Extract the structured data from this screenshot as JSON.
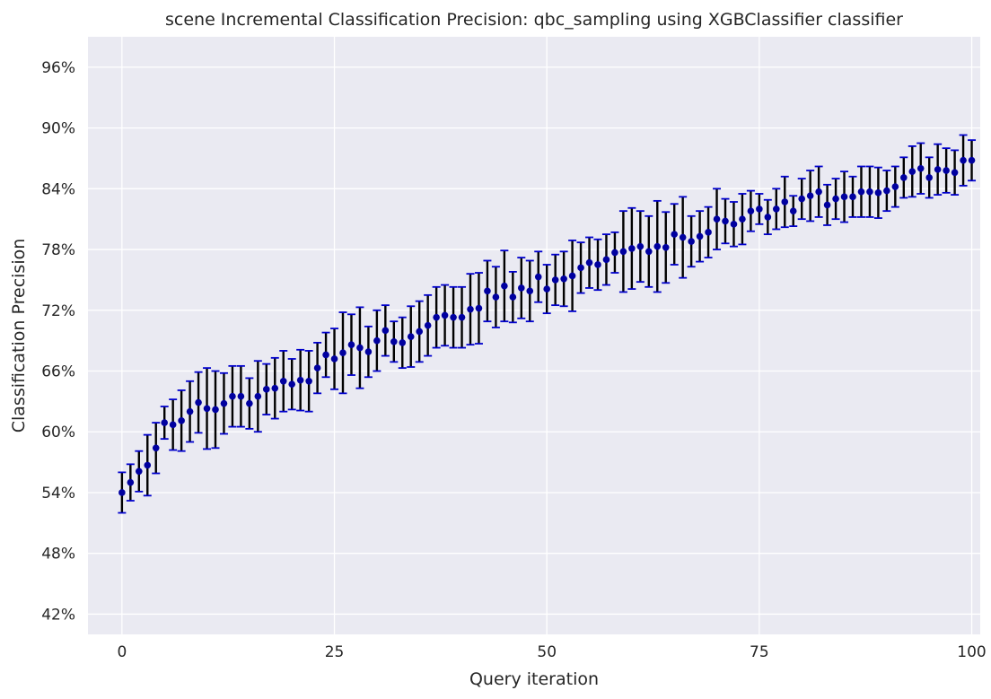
{
  "chart_data": {
    "type": "scatter",
    "title": "scene Incremental Classification Precision: qbc_sampling using XGBClassifier classifier",
    "xlabel": "Query iteration",
    "ylabel": "Classification Precision",
    "xlim": [
      -4,
      101
    ],
    "ylim": [
      0.4,
      0.99
    ],
    "xticks": [
      0,
      25,
      50,
      75,
      100
    ],
    "xtick_labels": [
      "0",
      "25",
      "50",
      "75",
      "100"
    ],
    "yticks": [
      0.42,
      0.48,
      0.54,
      0.6,
      0.66,
      0.72,
      0.78,
      0.84,
      0.9,
      0.96
    ],
    "ytick_labels": [
      "42%",
      "48%",
      "54%",
      "60%",
      "66%",
      "72%",
      "78%",
      "84%",
      "90%",
      "96%"
    ],
    "grid": true,
    "colors": {
      "background": "#EAEAF2",
      "grid": "#FFFFFF",
      "marker": "#0000A0",
      "errorbar": "#000000",
      "cap": "#0000CD",
      "text": "#262626"
    },
    "x": [
      0,
      1,
      2,
      3,
      4,
      5,
      6,
      7,
      8,
      9,
      10,
      11,
      12,
      13,
      14,
      15,
      16,
      17,
      18,
      19,
      20,
      21,
      22,
      23,
      24,
      25,
      26,
      27,
      28,
      29,
      30,
      31,
      32,
      33,
      34,
      35,
      36,
      37,
      38,
      39,
      40,
      41,
      42,
      43,
      44,
      45,
      46,
      47,
      48,
      49,
      50,
      51,
      52,
      53,
      54,
      55,
      56,
      57,
      58,
      59,
      60,
      61,
      62,
      63,
      64,
      65,
      66,
      67,
      68,
      69,
      70,
      71,
      72,
      73,
      74,
      75,
      76,
      77,
      78,
      79,
      80,
      81,
      82,
      83,
      84,
      85,
      86,
      87,
      88,
      89,
      90,
      91,
      92,
      93,
      94,
      95,
      96,
      97,
      98,
      99,
      100
    ],
    "y": [
      0.54,
      0.55,
      0.561,
      0.567,
      0.584,
      0.609,
      0.607,
      0.611,
      0.62,
      0.629,
      0.623,
      0.622,
      0.628,
      0.635,
      0.635,
      0.628,
      0.635,
      0.642,
      0.643,
      0.65,
      0.647,
      0.651,
      0.65,
      0.663,
      0.676,
      0.672,
      0.678,
      0.686,
      0.683,
      0.679,
      0.69,
      0.7,
      0.689,
      0.688,
      0.694,
      0.699,
      0.705,
      0.713,
      0.715,
      0.713,
      0.713,
      0.721,
      0.722,
      0.739,
      0.733,
      0.744,
      0.733,
      0.742,
      0.739,
      0.753,
      0.741,
      0.75,
      0.751,
      0.754,
      0.762,
      0.767,
      0.765,
      0.77,
      0.777,
      0.778,
      0.781,
      0.783,
      0.778,
      0.783,
      0.782,
      0.795,
      0.792,
      0.788,
      0.793,
      0.797,
      0.81,
      0.808,
      0.805,
      0.81,
      0.818,
      0.82,
      0.812,
      0.82,
      0.827,
      0.818,
      0.83,
      0.833,
      0.837,
      0.824,
      0.83,
      0.832,
      0.832,
      0.837,
      0.837,
      0.836,
      0.838,
      0.842,
      0.851,
      0.857,
      0.86,
      0.851,
      0.859,
      0.858,
      0.856,
      0.868,
      0.868
    ],
    "err": [
      0.02,
      0.018,
      0.02,
      0.03,
      0.025,
      0.016,
      0.025,
      0.03,
      0.03,
      0.03,
      0.04,
      0.038,
      0.03,
      0.03,
      0.03,
      0.025,
      0.035,
      0.025,
      0.03,
      0.03,
      0.025,
      0.03,
      0.03,
      0.025,
      0.022,
      0.03,
      0.04,
      0.03,
      0.04,
      0.025,
      0.03,
      0.025,
      0.02,
      0.025,
      0.03,
      0.03,
      0.03,
      0.03,
      0.03,
      0.03,
      0.03,
      0.035,
      0.035,
      0.03,
      0.03,
      0.035,
      0.025,
      0.03,
      0.03,
      0.025,
      0.024,
      0.025,
      0.027,
      0.035,
      0.025,
      0.025,
      0.025,
      0.025,
      0.02,
      0.04,
      0.04,
      0.035,
      0.035,
      0.045,
      0.035,
      0.03,
      0.04,
      0.025,
      0.025,
      0.025,
      0.03,
      0.022,
      0.022,
      0.025,
      0.02,
      0.015,
      0.017,
      0.02,
      0.025,
      0.015,
      0.02,
      0.025,
      0.025,
      0.02,
      0.02,
      0.025,
      0.02,
      0.025,
      0.025,
      0.025,
      0.02,
      0.02,
      0.02,
      0.025,
      0.025,
      0.02,
      0.025,
      0.022,
      0.022,
      0.025,
      0.02
    ]
  }
}
